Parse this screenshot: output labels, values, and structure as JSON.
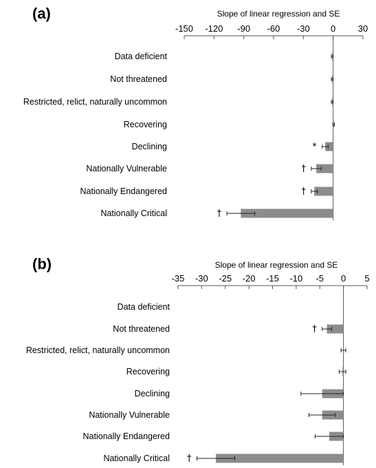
{
  "chart_data": [
    {
      "panel": "(a)",
      "type": "bar",
      "orientation": "horizontal",
      "xlabel": "Slope of  linear regression and SE",
      "xlim": [
        -150,
        30
      ],
      "xticks": [
        -150,
        -120,
        -90,
        -60,
        -30,
        0,
        30
      ],
      "xtick_labels": [
        "-150",
        "-120",
        "-90",
        "-60",
        "-30",
        "0",
        "30"
      ],
      "categories": [
        "Data deficient",
        "Not threatened",
        "Restricted, relict, naturally uncommon",
        "Recovering",
        "Declining",
        "Nationally  Vulnerable",
        "Nationally Endangered",
        "Nationally Critical"
      ],
      "values": [
        -1,
        -1,
        -1,
        0.5,
        -8,
        -17,
        -19,
        -93
      ],
      "se": [
        0.8,
        0.8,
        0.8,
        0.8,
        3,
        5,
        3,
        14
      ],
      "markers": [
        "",
        "",
        "",
        "",
        "*",
        "†",
        "†",
        "†"
      ],
      "grid": false
    },
    {
      "panel": "(b)",
      "type": "bar",
      "orientation": "horizontal",
      "xlabel": "Slope of linear regression and SE",
      "xlim": [
        -35,
        5
      ],
      "xticks": [
        -35,
        -30,
        -25,
        -20,
        -15,
        -10,
        -5,
        0,
        5
      ],
      "xtick_labels": [
        "-35",
        "-30",
        "-25",
        "-20",
        "-15",
        "-10",
        "-5",
        "0",
        "5"
      ],
      "categories": [
        "Data deficient",
        "Not threatened",
        "Restricted, relict, naturally uncommon",
        "Recovering",
        "Declining",
        "Nationally Vulnerable",
        "Nationally Endangered",
        "Nationally Critical"
      ],
      "values": [
        0,
        -3.5,
        0,
        -0.2,
        -4.5,
        -4.5,
        -3,
        -27
      ],
      "se": [
        0,
        1,
        0.5,
        0.7,
        4.5,
        2.8,
        3,
        4
      ],
      "markers": [
        "",
        "†",
        "",
        "",
        "",
        "",
        "",
        "†"
      ],
      "grid": false
    }
  ],
  "colors": {
    "bar": "#8c8c8c",
    "axis": "#555555",
    "text": "#1a1a1a"
  }
}
